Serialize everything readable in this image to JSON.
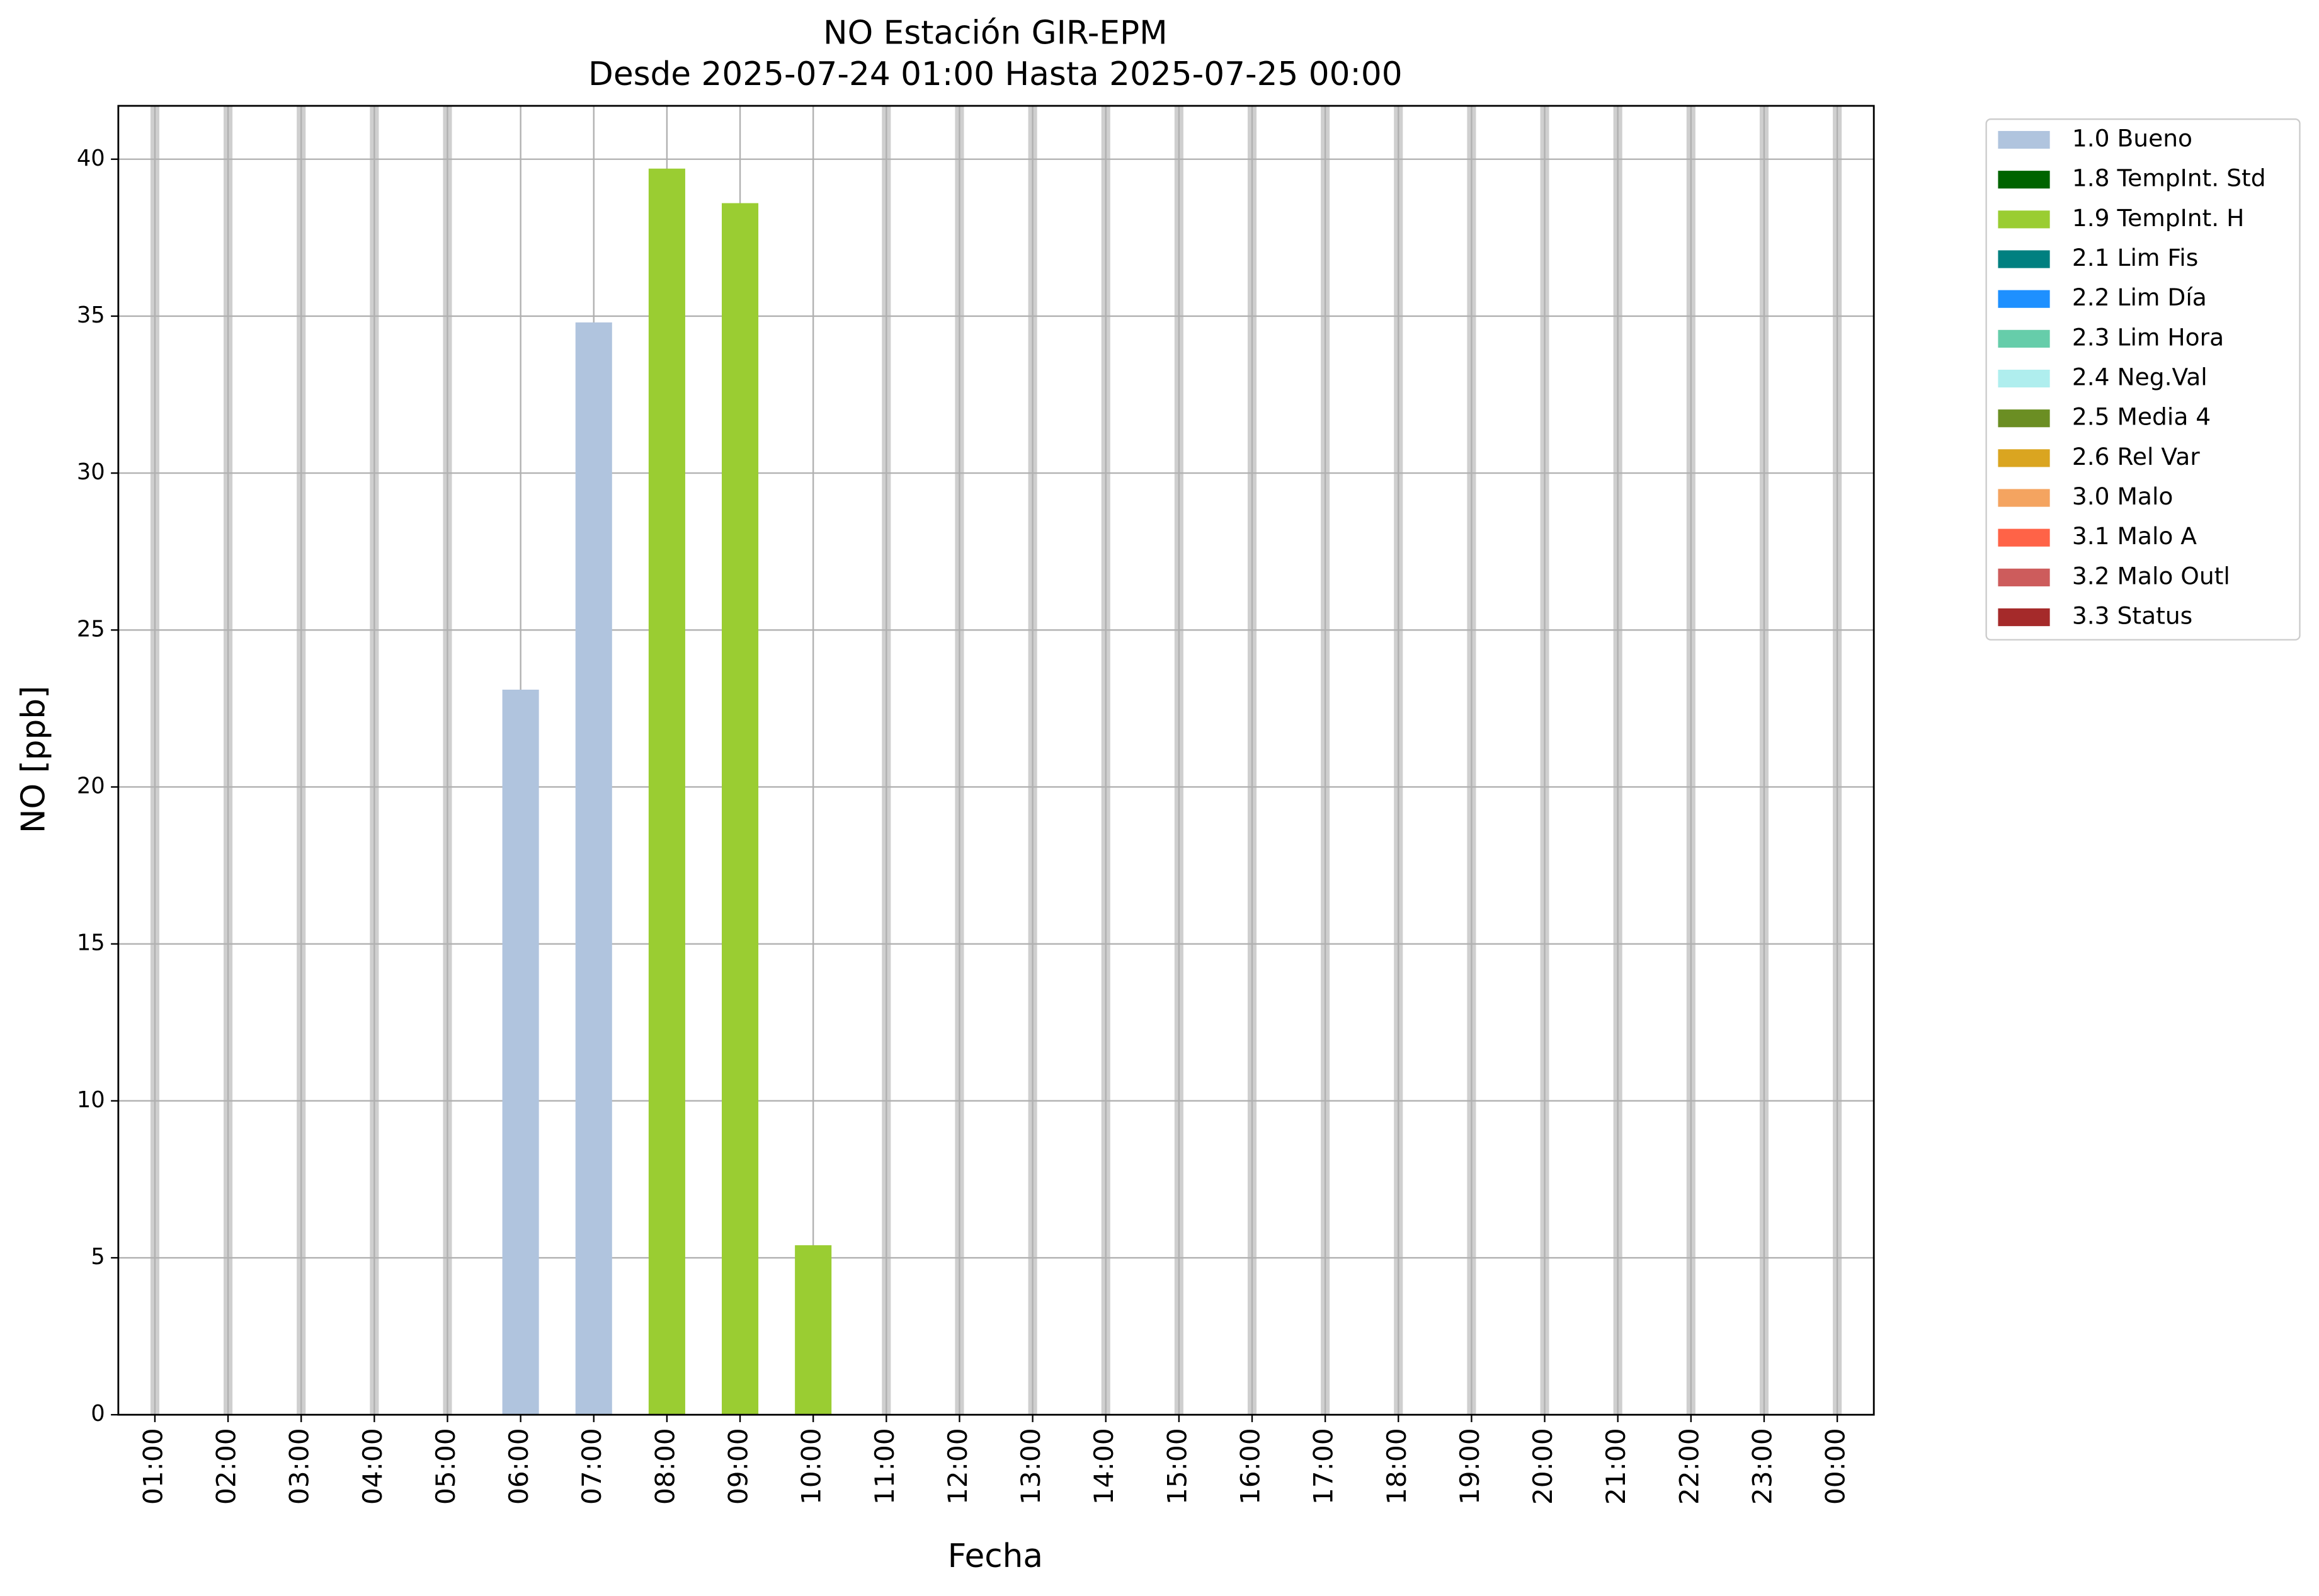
{
  "chart_data": {
    "type": "bar",
    "title": "NO Estación GIR-EPM",
    "subtitle": "Desde 2025-07-24 01:00 Hasta 2025-07-25 00:00",
    "x_label": "Fecha",
    "y_label": "NO [ppb]",
    "categories": [
      "01:00",
      "02:00",
      "03:00",
      "04:00",
      "05:00",
      "06:00",
      "07:00",
      "08:00",
      "09:00",
      "10:00",
      "11:00",
      "12:00",
      "13:00",
      "14:00",
      "15:00",
      "16:00",
      "17:00",
      "18:00",
      "19:00",
      "20:00",
      "21:00",
      "22:00",
      "23:00",
      "00:00"
    ],
    "ylim": [
      0,
      41.7
    ],
    "yticks": [
      0,
      5,
      10,
      15,
      20,
      25,
      30,
      35,
      40
    ],
    "grid": true,
    "legend": "outside-right",
    "series": [
      {
        "name": "1.0 Bueno",
        "color": "#b0c4de",
        "values": [
          null,
          null,
          null,
          null,
          null,
          23.1,
          34.8,
          null,
          null,
          null,
          null,
          null,
          null,
          null,
          null,
          null,
          null,
          null,
          null,
          null,
          null,
          null,
          null,
          null
        ]
      },
      {
        "name": "1.8 TempInt. Std",
        "color": "#006400",
        "values": [
          null,
          null,
          null,
          null,
          null,
          null,
          null,
          null,
          null,
          null,
          null,
          null,
          null,
          null,
          null,
          null,
          null,
          null,
          null,
          null,
          null,
          null,
          null,
          null
        ]
      },
      {
        "name": "1.9 TempInt. H",
        "color": "#9acd32",
        "values": [
          null,
          null,
          null,
          null,
          null,
          null,
          null,
          39.7,
          38.6,
          5.4,
          null,
          null,
          null,
          null,
          null,
          null,
          null,
          null,
          null,
          null,
          null,
          null,
          null,
          null
        ]
      },
      {
        "name": "2.1 Lim Fis",
        "color": "#008080",
        "values": [
          null,
          null,
          null,
          null,
          null,
          null,
          null,
          null,
          null,
          null,
          null,
          null,
          null,
          null,
          null,
          null,
          null,
          null,
          null,
          null,
          null,
          null,
          null,
          null
        ]
      },
      {
        "name": "2.2 Lim Día",
        "color": "#1e90ff",
        "values": [
          null,
          null,
          null,
          null,
          null,
          null,
          null,
          null,
          null,
          null,
          null,
          null,
          null,
          null,
          null,
          null,
          null,
          null,
          null,
          null,
          null,
          null,
          null,
          null
        ]
      },
      {
        "name": "2.3 Lim Hora",
        "color": "#66cdaa",
        "values": [
          null,
          null,
          null,
          null,
          null,
          null,
          null,
          null,
          null,
          null,
          null,
          null,
          null,
          null,
          null,
          null,
          null,
          null,
          null,
          null,
          null,
          null,
          null,
          null
        ]
      },
      {
        "name": "2.4 Neg.Val",
        "color": "#afeeee",
        "values": [
          null,
          null,
          null,
          null,
          null,
          null,
          null,
          null,
          null,
          null,
          null,
          null,
          null,
          null,
          null,
          null,
          null,
          null,
          null,
          null,
          null,
          null,
          null,
          null
        ]
      },
      {
        "name": "2.5 Media 4",
        "color": "#6b8e23",
        "values": [
          null,
          null,
          null,
          null,
          null,
          null,
          null,
          null,
          null,
          null,
          null,
          null,
          null,
          null,
          null,
          null,
          null,
          null,
          null,
          null,
          null,
          null,
          null,
          null
        ]
      },
      {
        "name": "2.6 Rel Var",
        "color": "#daa520",
        "values": [
          null,
          null,
          null,
          null,
          null,
          null,
          null,
          null,
          null,
          null,
          null,
          null,
          null,
          null,
          null,
          null,
          null,
          null,
          null,
          null,
          null,
          null,
          null,
          null
        ]
      },
      {
        "name": "3.0 Malo",
        "color": "#f4a460",
        "values": [
          null,
          null,
          null,
          null,
          null,
          null,
          null,
          null,
          null,
          null,
          null,
          null,
          null,
          null,
          null,
          null,
          null,
          null,
          null,
          null,
          null,
          null,
          null,
          null
        ]
      },
      {
        "name": "3.1 Malo A",
        "color": "#ff6347",
        "values": [
          null,
          null,
          null,
          null,
          null,
          null,
          null,
          null,
          null,
          null,
          null,
          null,
          null,
          null,
          null,
          null,
          null,
          null,
          null,
          null,
          null,
          null,
          null,
          null
        ]
      },
      {
        "name": "3.2 Malo Outl",
        "color": "#cd5c5c",
        "values": [
          null,
          null,
          null,
          null,
          null,
          null,
          null,
          null,
          null,
          null,
          null,
          null,
          null,
          null,
          null,
          null,
          null,
          null,
          null,
          null,
          null,
          null,
          null,
          null
        ]
      },
      {
        "name": "3.3 Status",
        "color": "#a52a2a",
        "values": [
          null,
          null,
          null,
          null,
          null,
          null,
          null,
          null,
          null,
          null,
          null,
          null,
          null,
          null,
          null,
          null,
          null,
          null,
          null,
          null,
          null,
          null,
          null,
          null
        ]
      }
    ]
  }
}
